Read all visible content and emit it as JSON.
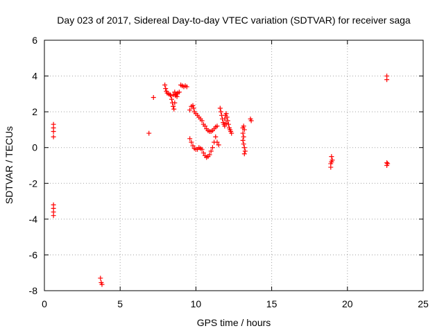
{
  "chart_data": {
    "type": "scatter",
    "title": "Day 023 of 2017, Sidereal Day-to-day VTEC variation (SDTVAR) for receiver saga",
    "xlabel": "GPS time / hours",
    "ylabel": "SDTVAR / TECUs",
    "xlim": [
      0,
      25
    ],
    "ylim": [
      -8,
      6
    ],
    "xticks": [
      0,
      5,
      10,
      15,
      20,
      25
    ],
    "yticks": [
      -8,
      -6,
      -4,
      -2,
      0,
      2,
      4,
      6
    ],
    "grid": true,
    "marker": "plus",
    "color": "#ff0000",
    "series": [
      {
        "points": [
          [
            0.6,
            1.3
          ],
          [
            0.6,
            1.1
          ],
          [
            0.6,
            0.9
          ],
          [
            0.6,
            0.6
          ],
          [
            0.6,
            -3.2
          ],
          [
            0.6,
            -3.4
          ],
          [
            0.6,
            -3.6
          ],
          [
            0.6,
            -3.8
          ],
          [
            3.7,
            -7.3
          ],
          [
            3.75,
            -7.55
          ],
          [
            3.8,
            -7.65
          ],
          [
            6.9,
            0.8
          ],
          [
            7.2,
            2.8
          ],
          [
            7.95,
            3.5
          ],
          [
            8.0,
            3.3
          ],
          [
            8.05,
            3.15
          ],
          [
            8.1,
            3.05
          ],
          [
            8.2,
            3.0
          ],
          [
            8.3,
            2.95
          ],
          [
            8.35,
            2.9
          ],
          [
            8.4,
            2.7
          ],
          [
            8.45,
            2.5
          ],
          [
            8.5,
            2.3
          ],
          [
            8.55,
            2.15
          ],
          [
            8.6,
            2.5
          ],
          [
            8.65,
            2.9
          ],
          [
            8.7,
            3.0
          ],
          [
            8.8,
            3.05
          ],
          [
            8.9,
            3.1
          ],
          [
            8.5,
            2.95
          ],
          [
            8.6,
            3.1
          ],
          [
            8.75,
            2.85
          ],
          [
            9.0,
            3.5
          ],
          [
            9.1,
            3.45
          ],
          [
            9.2,
            3.4
          ],
          [
            9.3,
            3.45
          ],
          [
            9.4,
            3.4
          ],
          [
            9.6,
            2.1
          ],
          [
            9.7,
            2.3
          ],
          [
            9.8,
            2.35
          ],
          [
            9.85,
            2.2
          ],
          [
            9.9,
            2.0
          ],
          [
            10.0,
            1.9
          ],
          [
            10.1,
            1.8
          ],
          [
            10.2,
            1.7
          ],
          [
            10.3,
            1.6
          ],
          [
            10.4,
            1.5
          ],
          [
            10.5,
            1.3
          ],
          [
            10.6,
            1.2
          ],
          [
            10.7,
            1.05
          ],
          [
            10.8,
            0.95
          ],
          [
            10.9,
            0.9
          ],
          [
            11.0,
            0.9
          ],
          [
            11.1,
            0.95
          ],
          [
            11.2,
            1.05
          ],
          [
            11.3,
            1.15
          ],
          [
            11.4,
            1.2
          ],
          [
            9.6,
            0.5
          ],
          [
            9.7,
            0.3
          ],
          [
            9.8,
            0.1
          ],
          [
            9.9,
            -0.05
          ],
          [
            10.0,
            -0.1
          ],
          [
            10.1,
            -0.1
          ],
          [
            10.2,
            0.0
          ],
          [
            10.3,
            -0.05
          ],
          [
            10.4,
            -0.1
          ],
          [
            10.5,
            -0.3
          ],
          [
            10.6,
            -0.45
          ],
          [
            10.7,
            -0.55
          ],
          [
            10.8,
            -0.5
          ],
          [
            10.9,
            -0.4
          ],
          [
            11.0,
            -0.2
          ],
          [
            11.1,
            0.0
          ],
          [
            11.2,
            0.3
          ],
          [
            11.3,
            0.6
          ],
          [
            11.4,
            0.3
          ],
          [
            11.5,
            0.15
          ],
          [
            11.6,
            2.2
          ],
          [
            11.65,
            2.0
          ],
          [
            11.7,
            1.8
          ],
          [
            11.75,
            1.6
          ],
          [
            11.8,
            1.4
          ],
          [
            11.85,
            1.3
          ],
          [
            11.9,
            1.6
          ],
          [
            11.95,
            1.8
          ],
          [
            12.0,
            1.9
          ],
          [
            12.05,
            1.7
          ],
          [
            12.1,
            1.5
          ],
          [
            12.15,
            1.3
          ],
          [
            12.2,
            1.1
          ],
          [
            12.25,
            1.0
          ],
          [
            12.3,
            0.9
          ],
          [
            12.35,
            0.8
          ],
          [
            11.9,
            1.2
          ],
          [
            12.0,
            1.35
          ],
          [
            13.1,
            1.1
          ],
          [
            13.15,
            1.2
          ],
          [
            13.2,
            1.0
          ],
          [
            13.1,
            0.8
          ],
          [
            13.15,
            0.6
          ],
          [
            13.1,
            0.4
          ],
          [
            13.15,
            0.2
          ],
          [
            13.2,
            0.0
          ],
          [
            13.25,
            -0.2
          ],
          [
            13.2,
            -0.35
          ],
          [
            13.6,
            1.6
          ],
          [
            13.65,
            1.5
          ],
          [
            18.95,
            -0.5
          ],
          [
            19.0,
            -0.7
          ],
          [
            18.95,
            -0.8
          ],
          [
            18.9,
            -0.9
          ],
          [
            18.9,
            -1.1
          ],
          [
            22.6,
            4.0
          ],
          [
            22.6,
            3.8
          ],
          [
            22.6,
            -0.85
          ],
          [
            22.65,
            -0.9
          ],
          [
            22.6,
            -1.0
          ]
        ]
      }
    ]
  }
}
